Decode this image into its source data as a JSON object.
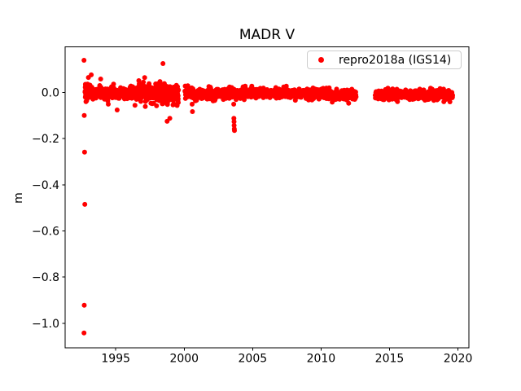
{
  "chart_data": {
    "type": "scatter",
    "title": "MADR V",
    "xlabel": "",
    "ylabel": "m",
    "grid": false,
    "legend_position": "upper right",
    "legend": [
      {
        "label": "repro2018a (IGS14)",
        "marker": "dot",
        "color": "#ff0000"
      }
    ],
    "marker_color": "#ff0000",
    "marker_radius_px": 3,
    "xlim": [
      1991.3,
      2020.8
    ],
    "ylim": [
      -1.107,
      0.197
    ],
    "xticks": [
      {
        "value": 1995,
        "label": "1995"
      },
      {
        "value": 2000,
        "label": "2000"
      },
      {
        "value": 2005,
        "label": "2005"
      },
      {
        "value": 2010,
        "label": "2010"
      },
      {
        "value": 2015,
        "label": "2015"
      },
      {
        "value": 2020,
        "label": "2020"
      }
    ],
    "yticks": [
      {
        "value": 0.0,
        "label": "0.0"
      },
      {
        "value": -0.2,
        "label": "−0.2"
      },
      {
        "value": -0.4,
        "label": "−0.4"
      },
      {
        "value": -0.6,
        "label": "−0.6"
      },
      {
        "value": -0.8,
        "label": "−0.8"
      },
      {
        "value": -1.0,
        "label": "−1.0"
      }
    ],
    "series_name": "repro2018a (IGS14)",
    "generator_seed": 7,
    "band_segments": [
      {
        "x_start": 1992.75,
        "x_end": 1993.15,
        "n": 55,
        "center": 0.004,
        "sigma": 0.02,
        "min": -0.045,
        "max": 0.065
      },
      {
        "x_start": 1993.15,
        "x_end": 1996.4,
        "n": 300,
        "center": -0.004,
        "sigma": 0.011,
        "min": -0.055,
        "max": 0.038
      },
      {
        "x_start": 1996.4,
        "x_end": 1998.1,
        "n": 200,
        "center": 0.002,
        "sigma": 0.016,
        "min": -0.062,
        "max": 0.065
      },
      {
        "x_start": 1998.1,
        "x_end": 1999.58,
        "n": 170,
        "center": -0.004,
        "sigma": 0.018,
        "min": -0.092,
        "max": 0.055
      },
      {
        "x_start": 2000.05,
        "x_end": 2003.2,
        "n": 300,
        "center": -0.006,
        "sigma": 0.01,
        "min": -0.042,
        "max": 0.03
      },
      {
        "x_start": 2003.2,
        "x_end": 2007.0,
        "n": 360,
        "center": -0.003,
        "sigma": 0.009,
        "min": -0.035,
        "max": 0.03
      },
      {
        "x_start": 2007.0,
        "x_end": 2010.2,
        "n": 300,
        "center": -0.004,
        "sigma": 0.009,
        "min": -0.035,
        "max": 0.028
      },
      {
        "x_start": 2010.2,
        "x_end": 2012.56,
        "n": 220,
        "center": -0.012,
        "sigma": 0.01,
        "min": -0.048,
        "max": 0.02
      },
      {
        "x_start": 2013.95,
        "x_end": 2019.62,
        "n": 520,
        "center": -0.01,
        "sigma": 0.009,
        "min": -0.042,
        "max": 0.022
      }
    ],
    "outliers": [
      [
        1992.68,
        0.139
      ],
      [
        1992.7,
        -0.1
      ],
      [
        1992.72,
        -0.259
      ],
      [
        1992.74,
        -0.485
      ],
      [
        1992.7,
        -0.922
      ],
      [
        1992.68,
        -1.042
      ],
      [
        1993.21,
        0.076
      ],
      [
        1993.9,
        0.058
      ],
      [
        1995.1,
        -0.076
      ],
      [
        1998.45,
        0.125
      ],
      [
        1998.75,
        -0.125
      ],
      [
        1998.95,
        -0.112
      ],
      [
        2000.58,
        -0.051
      ],
      [
        2000.6,
        -0.083
      ],
      [
        2003.62,
        -0.051
      ],
      [
        2003.63,
        -0.112
      ],
      [
        2003.64,
        -0.127
      ],
      [
        2003.65,
        -0.143
      ],
      [
        2003.66,
        -0.158
      ],
      [
        2003.67,
        -0.165
      ]
    ]
  }
}
